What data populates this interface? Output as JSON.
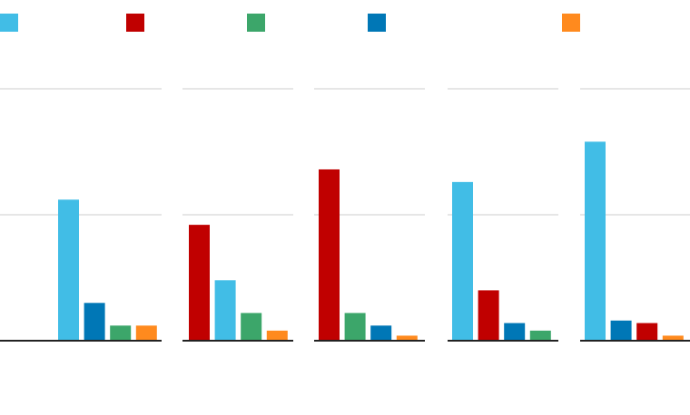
{
  "legend": {
    "colors": [
      "#41bde6",
      "#c00000",
      "#3ca66a",
      "#0077b6",
      "#ff8a1e"
    ]
  },
  "chart_data": [
    {
      "type": "bar",
      "values": [
        1.12,
        0.3,
        0.12,
        0.12
      ],
      "colors": [
        "#41bde6",
        "#0077b6",
        "#3ca66a",
        "#ff8a1e"
      ],
      "ylim": [
        0,
        2
      ],
      "yticks": [
        0,
        1,
        2
      ],
      "grid": true
    },
    {
      "type": "bar",
      "values": [
        0.92,
        0.48,
        0.22,
        0.08
      ],
      "colors": [
        "#c00000",
        "#41bde6",
        "#3ca66a",
        "#ff8a1e"
      ],
      "ylim": [
        0,
        2
      ],
      "yticks": [
        0,
        1,
        2
      ],
      "grid": true
    },
    {
      "type": "bar",
      "values": [
        1.36,
        0.22,
        0.12,
        0.04
      ],
      "colors": [
        "#c00000",
        "#3ca66a",
        "#0077b6",
        "#ff8a1e"
      ],
      "ylim": [
        0,
        2
      ],
      "yticks": [
        0,
        1,
        2
      ],
      "grid": true
    },
    {
      "type": "bar",
      "values": [
        1.26,
        0.4,
        0.14,
        0.08
      ],
      "colors": [
        "#41bde6",
        "#c00000",
        "#0077b6",
        "#3ca66a"
      ],
      "ylim": [
        0,
        2
      ],
      "yticks": [
        0,
        1,
        2
      ],
      "grid": true
    },
    {
      "type": "bar",
      "values": [
        1.58,
        0.16,
        0.14,
        0.04
      ],
      "colors": [
        "#41bde6",
        "#0077b6",
        "#c00000",
        "#ff8a1e"
      ],
      "ylim": [
        0,
        2
      ],
      "yticks": [
        0,
        1,
        2
      ],
      "grid": true
    }
  ]
}
